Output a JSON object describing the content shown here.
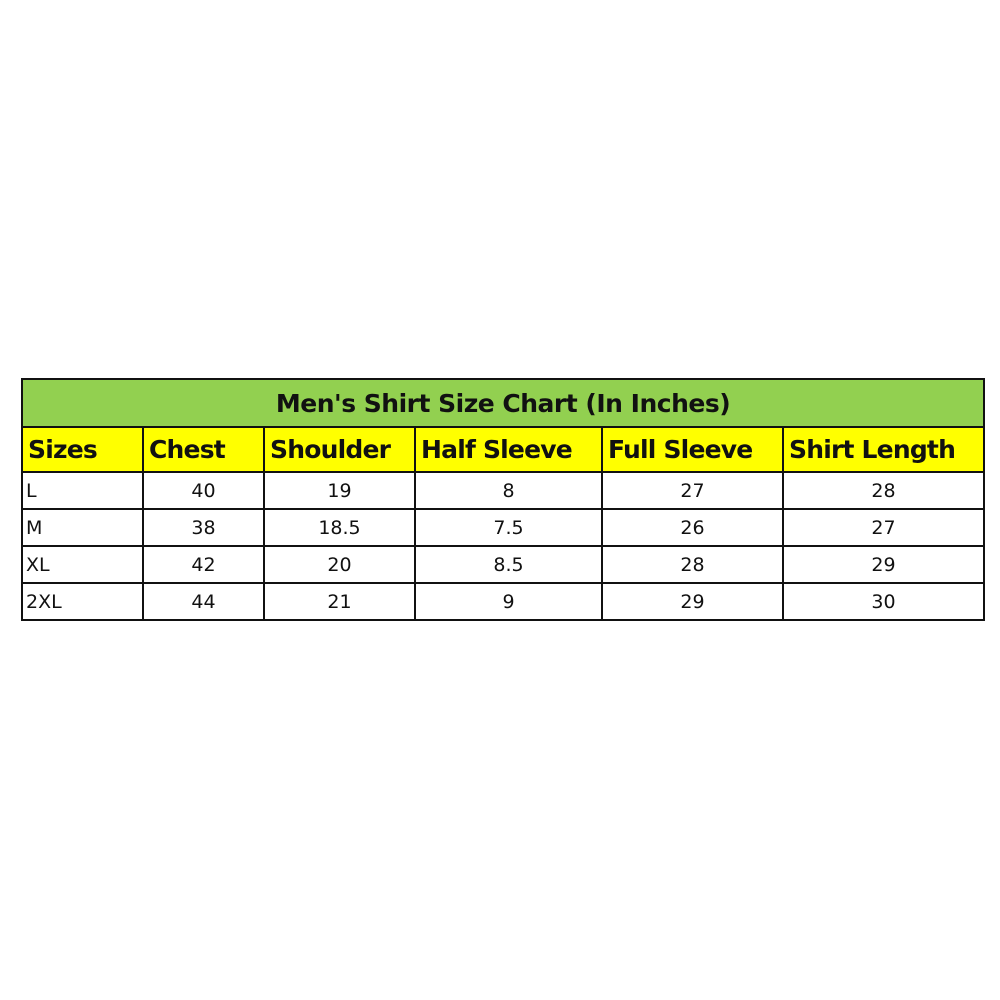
{
  "title": "Men's Shirt Size Chart (In Inches)",
  "colors": {
    "title_bg": "#92D050",
    "header_bg": "#FFFF00",
    "border": "#111111"
  },
  "headers": [
    "Sizes",
    "Chest",
    "Shoulder",
    "Half Sleeve",
    "Full Sleeve",
    "Shirt Length"
  ],
  "rows": [
    [
      "L",
      "40",
      "19",
      "8",
      "27",
      "28"
    ],
    [
      "M",
      "38",
      "18.5",
      "7.5",
      "26",
      "27"
    ],
    [
      "XL",
      "42",
      "20",
      "8.5",
      "28",
      "29"
    ],
    [
      "2XL",
      "44",
      "21",
      "9",
      "29",
      "30"
    ]
  ]
}
